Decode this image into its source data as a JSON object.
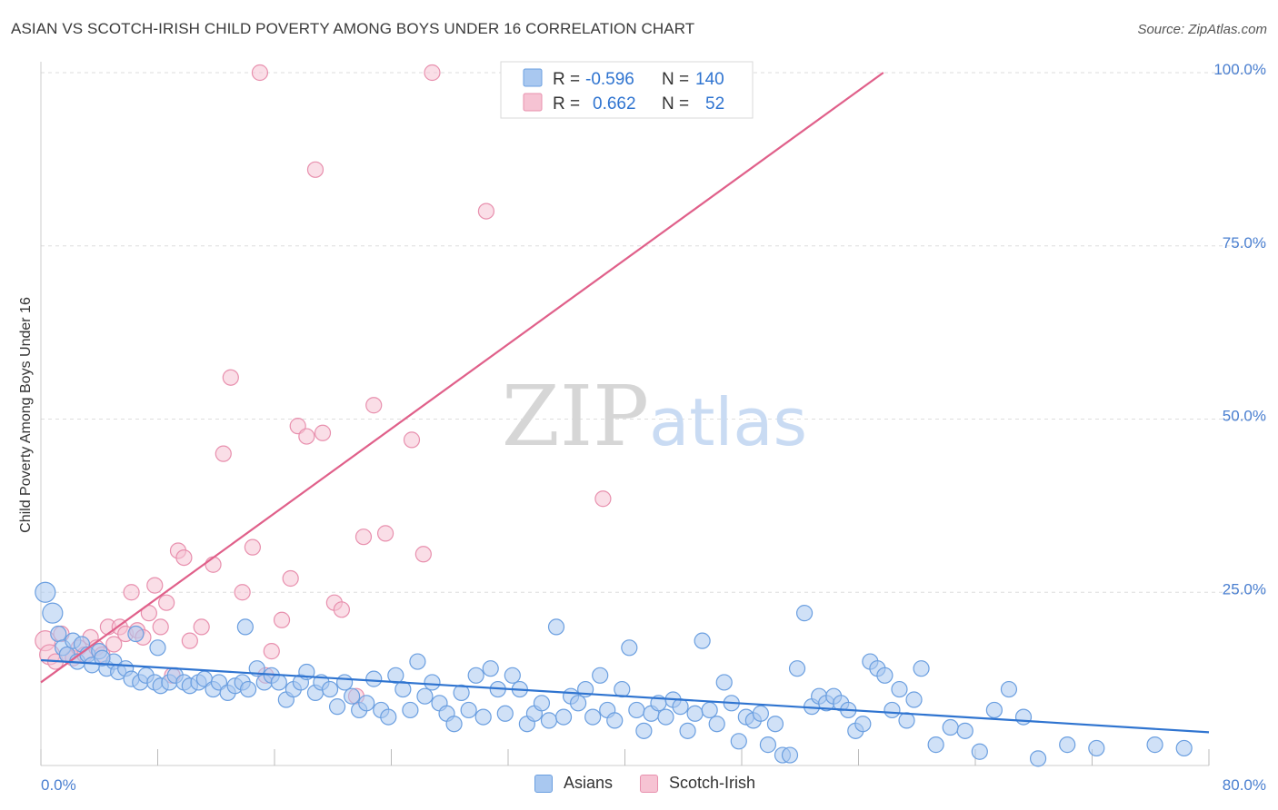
{
  "header": {
    "title": "ASIAN VS SCOTCH-IRISH CHILD POVERTY AMONG BOYS UNDER 16 CORRELATION CHART",
    "source": "Source: ZipAtlas.com"
  },
  "watermark": {
    "part1": "ZIP",
    "part2": "atlas"
  },
  "colors": {
    "asian_fill": "#a9c8f0",
    "asian_stroke": "#6b9fe0",
    "asian_line": "#2f74d0",
    "scotch_fill": "#f6c3d3",
    "scotch_stroke": "#e890ae",
    "scotch_line": "#e0608a",
    "tick_text": "#4a7fd0",
    "grid": "#dddddd"
  },
  "legend": {
    "rows": [
      {
        "r_label": "R =",
        "r_value": "-0.596",
        "n_label": "N =",
        "n_value": "140"
      },
      {
        "r_label": "R =",
        "r_value": "0.662",
        "n_label": "N =",
        "n_value": "52"
      }
    ]
  },
  "bottom_legend": {
    "asians": "Asians",
    "scotch_irish": "Scotch-Irish"
  },
  "chart_data": {
    "type": "scatter",
    "title": "ASIAN VS SCOTCH-IRISH CHILD POVERTY AMONG BOYS UNDER 16 CORRELATION CHART",
    "xlabel": "",
    "ylabel": "Child Poverty Among Boys Under 16",
    "xlim": [
      0,
      80
    ],
    "ylim": [
      0,
      100
    ],
    "x_tick_labels": [
      "0.0%",
      "80.0%"
    ],
    "y_tick_labels": [
      "25.0%",
      "50.0%",
      "75.0%",
      "100.0%"
    ],
    "y_ticks": [
      25,
      50,
      75,
      100
    ],
    "grid": true,
    "legend_position": "top-center",
    "series": [
      {
        "name": "Asians",
        "r": -0.596,
        "n": 140,
        "trend": {
          "x": [
            0,
            80
          ],
          "y": [
            15.2,
            4.8
          ]
        },
        "points": [
          [
            0.3,
            25
          ],
          [
            0.8,
            22
          ],
          [
            1.2,
            19
          ],
          [
            1.5,
            17
          ],
          [
            1.8,
            16
          ],
          [
            2.2,
            18
          ],
          [
            2.5,
            15
          ],
          [
            2.8,
            17.5
          ],
          [
            3.2,
            16
          ],
          [
            3.5,
            14.5
          ],
          [
            4,
            16.5
          ],
          [
            4.5,
            14
          ],
          [
            5,
            15
          ],
          [
            5.3,
            13.5
          ],
          [
            5.8,
            14
          ],
          [
            6.2,
            12.5
          ],
          [
            6.8,
            12
          ],
          [
            7.2,
            13
          ],
          [
            7.8,
            12
          ],
          [
            8.2,
            11.5
          ],
          [
            8.8,
            12
          ],
          [
            9.2,
            13
          ],
          [
            9.8,
            12
          ],
          [
            10.2,
            11.5
          ],
          [
            10.8,
            12
          ],
          [
            11.2,
            12.5
          ],
          [
            11.8,
            11
          ],
          [
            12.2,
            12
          ],
          [
            12.8,
            10.5
          ],
          [
            13.3,
            11.5
          ],
          [
            13.8,
            12
          ],
          [
            14.2,
            11
          ],
          [
            14.8,
            14
          ],
          [
            15.3,
            12
          ],
          [
            15.8,
            13
          ],
          [
            16.3,
            12
          ],
          [
            16.8,
            9.5
          ],
          [
            17.3,
            11
          ],
          [
            17.8,
            12
          ],
          [
            18.2,
            13.5
          ],
          [
            18.8,
            10.5
          ],
          [
            19.2,
            12
          ],
          [
            19.8,
            11
          ],
          [
            20.3,
            8.5
          ],
          [
            20.8,
            12
          ],
          [
            21.3,
            10
          ],
          [
            21.8,
            8
          ],
          [
            22.3,
            9
          ],
          [
            22.8,
            12.5
          ],
          [
            23.3,
            8
          ],
          [
            23.8,
            7
          ],
          [
            24.3,
            13
          ],
          [
            24.8,
            11
          ],
          [
            25.3,
            8
          ],
          [
            25.8,
            15
          ],
          [
            26.3,
            10
          ],
          [
            26.8,
            12
          ],
          [
            27.3,
            9
          ],
          [
            27.8,
            7.5
          ],
          [
            28.3,
            6
          ],
          [
            28.8,
            10.5
          ],
          [
            29.3,
            8
          ],
          [
            29.8,
            13
          ],
          [
            30.3,
            7
          ],
          [
            30.8,
            14
          ],
          [
            31.3,
            11
          ],
          [
            31.8,
            7.5
          ],
          [
            32.3,
            13
          ],
          [
            32.8,
            11
          ],
          [
            33.3,
            6
          ],
          [
            33.8,
            7.5
          ],
          [
            34.3,
            9
          ],
          [
            34.8,
            6.5
          ],
          [
            35.3,
            20
          ],
          [
            35.8,
            7
          ],
          [
            36.3,
            10
          ],
          [
            36.8,
            9
          ],
          [
            37.3,
            11
          ],
          [
            37.8,
            7
          ],
          [
            38.3,
            13
          ],
          [
            38.8,
            8
          ],
          [
            39.3,
            6.5
          ],
          [
            39.8,
            11
          ],
          [
            40.3,
            17
          ],
          [
            40.8,
            8
          ],
          [
            41.3,
            5
          ],
          [
            41.8,
            7.5
          ],
          [
            42.3,
            9
          ],
          [
            42.8,
            7
          ],
          [
            43.3,
            9.5
          ],
          [
            43.8,
            8.5
          ],
          [
            44.3,
            5
          ],
          [
            44.8,
            7.5
          ],
          [
            45.3,
            18
          ],
          [
            45.8,
            8
          ],
          [
            46.3,
            6
          ],
          [
            46.8,
            12
          ],
          [
            47.3,
            9
          ],
          [
            47.8,
            3.5
          ],
          [
            48.3,
            7
          ],
          [
            48.8,
            6.5
          ],
          [
            49.3,
            7.5
          ],
          [
            49.8,
            3
          ],
          [
            50.3,
            6
          ],
          [
            50.8,
            1.5
          ],
          [
            51.3,
            1.5
          ],
          [
            51.8,
            14
          ],
          [
            52.3,
            22
          ],
          [
            52.8,
            8.5
          ],
          [
            53.3,
            10
          ],
          [
            53.8,
            9
          ],
          [
            54.3,
            10
          ],
          [
            54.8,
            9
          ],
          [
            55.3,
            8
          ],
          [
            55.8,
            5
          ],
          [
            56.3,
            6
          ],
          [
            56.8,
            15
          ],
          [
            57.3,
            14
          ],
          [
            57.8,
            13
          ],
          [
            58.3,
            8
          ],
          [
            58.8,
            11
          ],
          [
            59.3,
            6.5
          ],
          [
            59.8,
            9.5
          ],
          [
            60.3,
            14
          ],
          [
            61.3,
            3
          ],
          [
            62.3,
            5.5
          ],
          [
            63.3,
            5
          ],
          [
            64.3,
            2
          ],
          [
            65.3,
            8
          ],
          [
            66.3,
            11
          ],
          [
            67.3,
            7
          ],
          [
            68.3,
            1
          ],
          [
            70.3,
            3
          ],
          [
            72.3,
            2.5
          ],
          [
            76.3,
            3
          ],
          [
            78.3,
            2.5
          ],
          [
            6.5,
            19
          ],
          [
            8,
            17
          ],
          [
            14,
            20
          ],
          [
            4.2,
            15.5
          ]
        ]
      },
      {
        "name": "Scotch-Irish",
        "r": 0.662,
        "n": 52,
        "trend": {
          "x": [
            0,
            57.7
          ],
          "y": [
            12,
            100
          ]
        },
        "points": [
          [
            0.3,
            18
          ],
          [
            0.6,
            16
          ],
          [
            1,
            15
          ],
          [
            1.4,
            19
          ],
          [
            1.8,
            16
          ],
          [
            2.2,
            15.5
          ],
          [
            2.6,
            17
          ],
          [
            3,
            16
          ],
          [
            3.4,
            18.5
          ],
          [
            3.8,
            17
          ],
          [
            4.2,
            16
          ],
          [
            4.6,
            20
          ],
          [
            5,
            17.5
          ],
          [
            5.4,
            20
          ],
          [
            5.8,
            19
          ],
          [
            6.2,
            25
          ],
          [
            6.6,
            19.5
          ],
          [
            7,
            18.5
          ],
          [
            7.4,
            22
          ],
          [
            7.8,
            26
          ],
          [
            8.2,
            20
          ],
          [
            8.6,
            23.5
          ],
          [
            9,
            13
          ],
          [
            9.4,
            31
          ],
          [
            9.8,
            30
          ],
          [
            10.2,
            18
          ],
          [
            11,
            20
          ],
          [
            11.8,
            29
          ],
          [
            12.5,
            45
          ],
          [
            13,
            56
          ],
          [
            13.8,
            25
          ],
          [
            14.5,
            31.5
          ],
          [
            15,
            100
          ],
          [
            15.4,
            13
          ],
          [
            15.8,
            16.5
          ],
          [
            16.5,
            21
          ],
          [
            17.1,
            27
          ],
          [
            17.6,
            49
          ],
          [
            18.2,
            47.5
          ],
          [
            18.8,
            86
          ],
          [
            19.3,
            48
          ],
          [
            20.1,
            23.5
          ],
          [
            20.6,
            22.5
          ],
          [
            21.6,
            10
          ],
          [
            22.1,
            33
          ],
          [
            22.8,
            52
          ],
          [
            23.6,
            33.5
          ],
          [
            25.4,
            47
          ],
          [
            26.2,
            30.5
          ],
          [
            26.8,
            100
          ],
          [
            30.5,
            80
          ],
          [
            38.5,
            38.5
          ]
        ]
      }
    ]
  }
}
